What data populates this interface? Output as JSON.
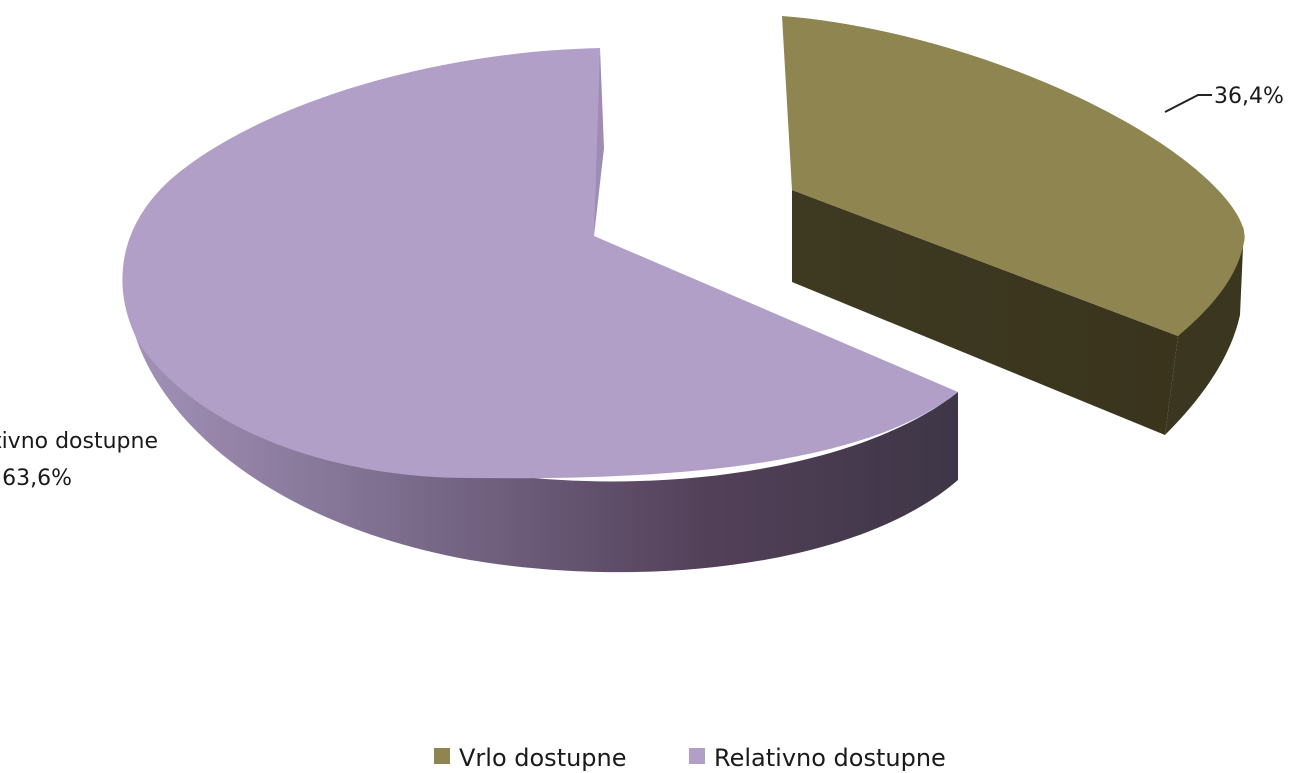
{
  "chart_data": {
    "type": "pie",
    "three_d": true,
    "exploded": true,
    "categories": [
      "Vrlo dostupne",
      "Relativno dostupne"
    ],
    "values": [
      36.4,
      63.6
    ],
    "labels": [
      "36,4%",
      "63,6%"
    ],
    "colors": [
      "#8e8550",
      "#b19fc8"
    ],
    "side_colors": [
      "#3b3620",
      "#5a4a66"
    ],
    "legend": {
      "position": "bottom",
      "entries": [
        "Vrlo dostupne",
        "Relativno dostupne"
      ]
    },
    "title": ""
  }
}
